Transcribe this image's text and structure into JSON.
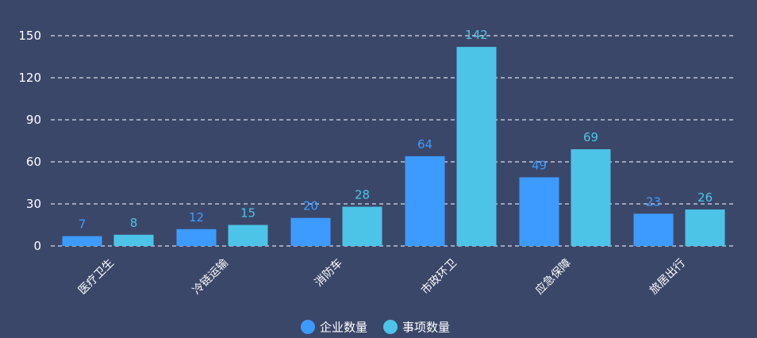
{
  "chart_data": {
    "type": "bar",
    "categories": [
      "医疗卫生",
      "冷链运输",
      "消防车",
      "市政环卫",
      "应急保障",
      "旅居出行"
    ],
    "series": [
      {
        "name": "企业数量",
        "values": [
          7,
          12,
          20,
          64,
          49,
          23
        ],
        "color": "#3d9bff"
      },
      {
        "name": "事项数量",
        "values": [
          8,
          15,
          28,
          142,
          69,
          26
        ],
        "color": "#4cc4e8"
      }
    ],
    "yticks": [
      0,
      30,
      60,
      90,
      120,
      150
    ],
    "ylim": [
      0,
      150
    ],
    "grid": true,
    "legend_position": "bottom-center",
    "background": "#3b4769"
  }
}
